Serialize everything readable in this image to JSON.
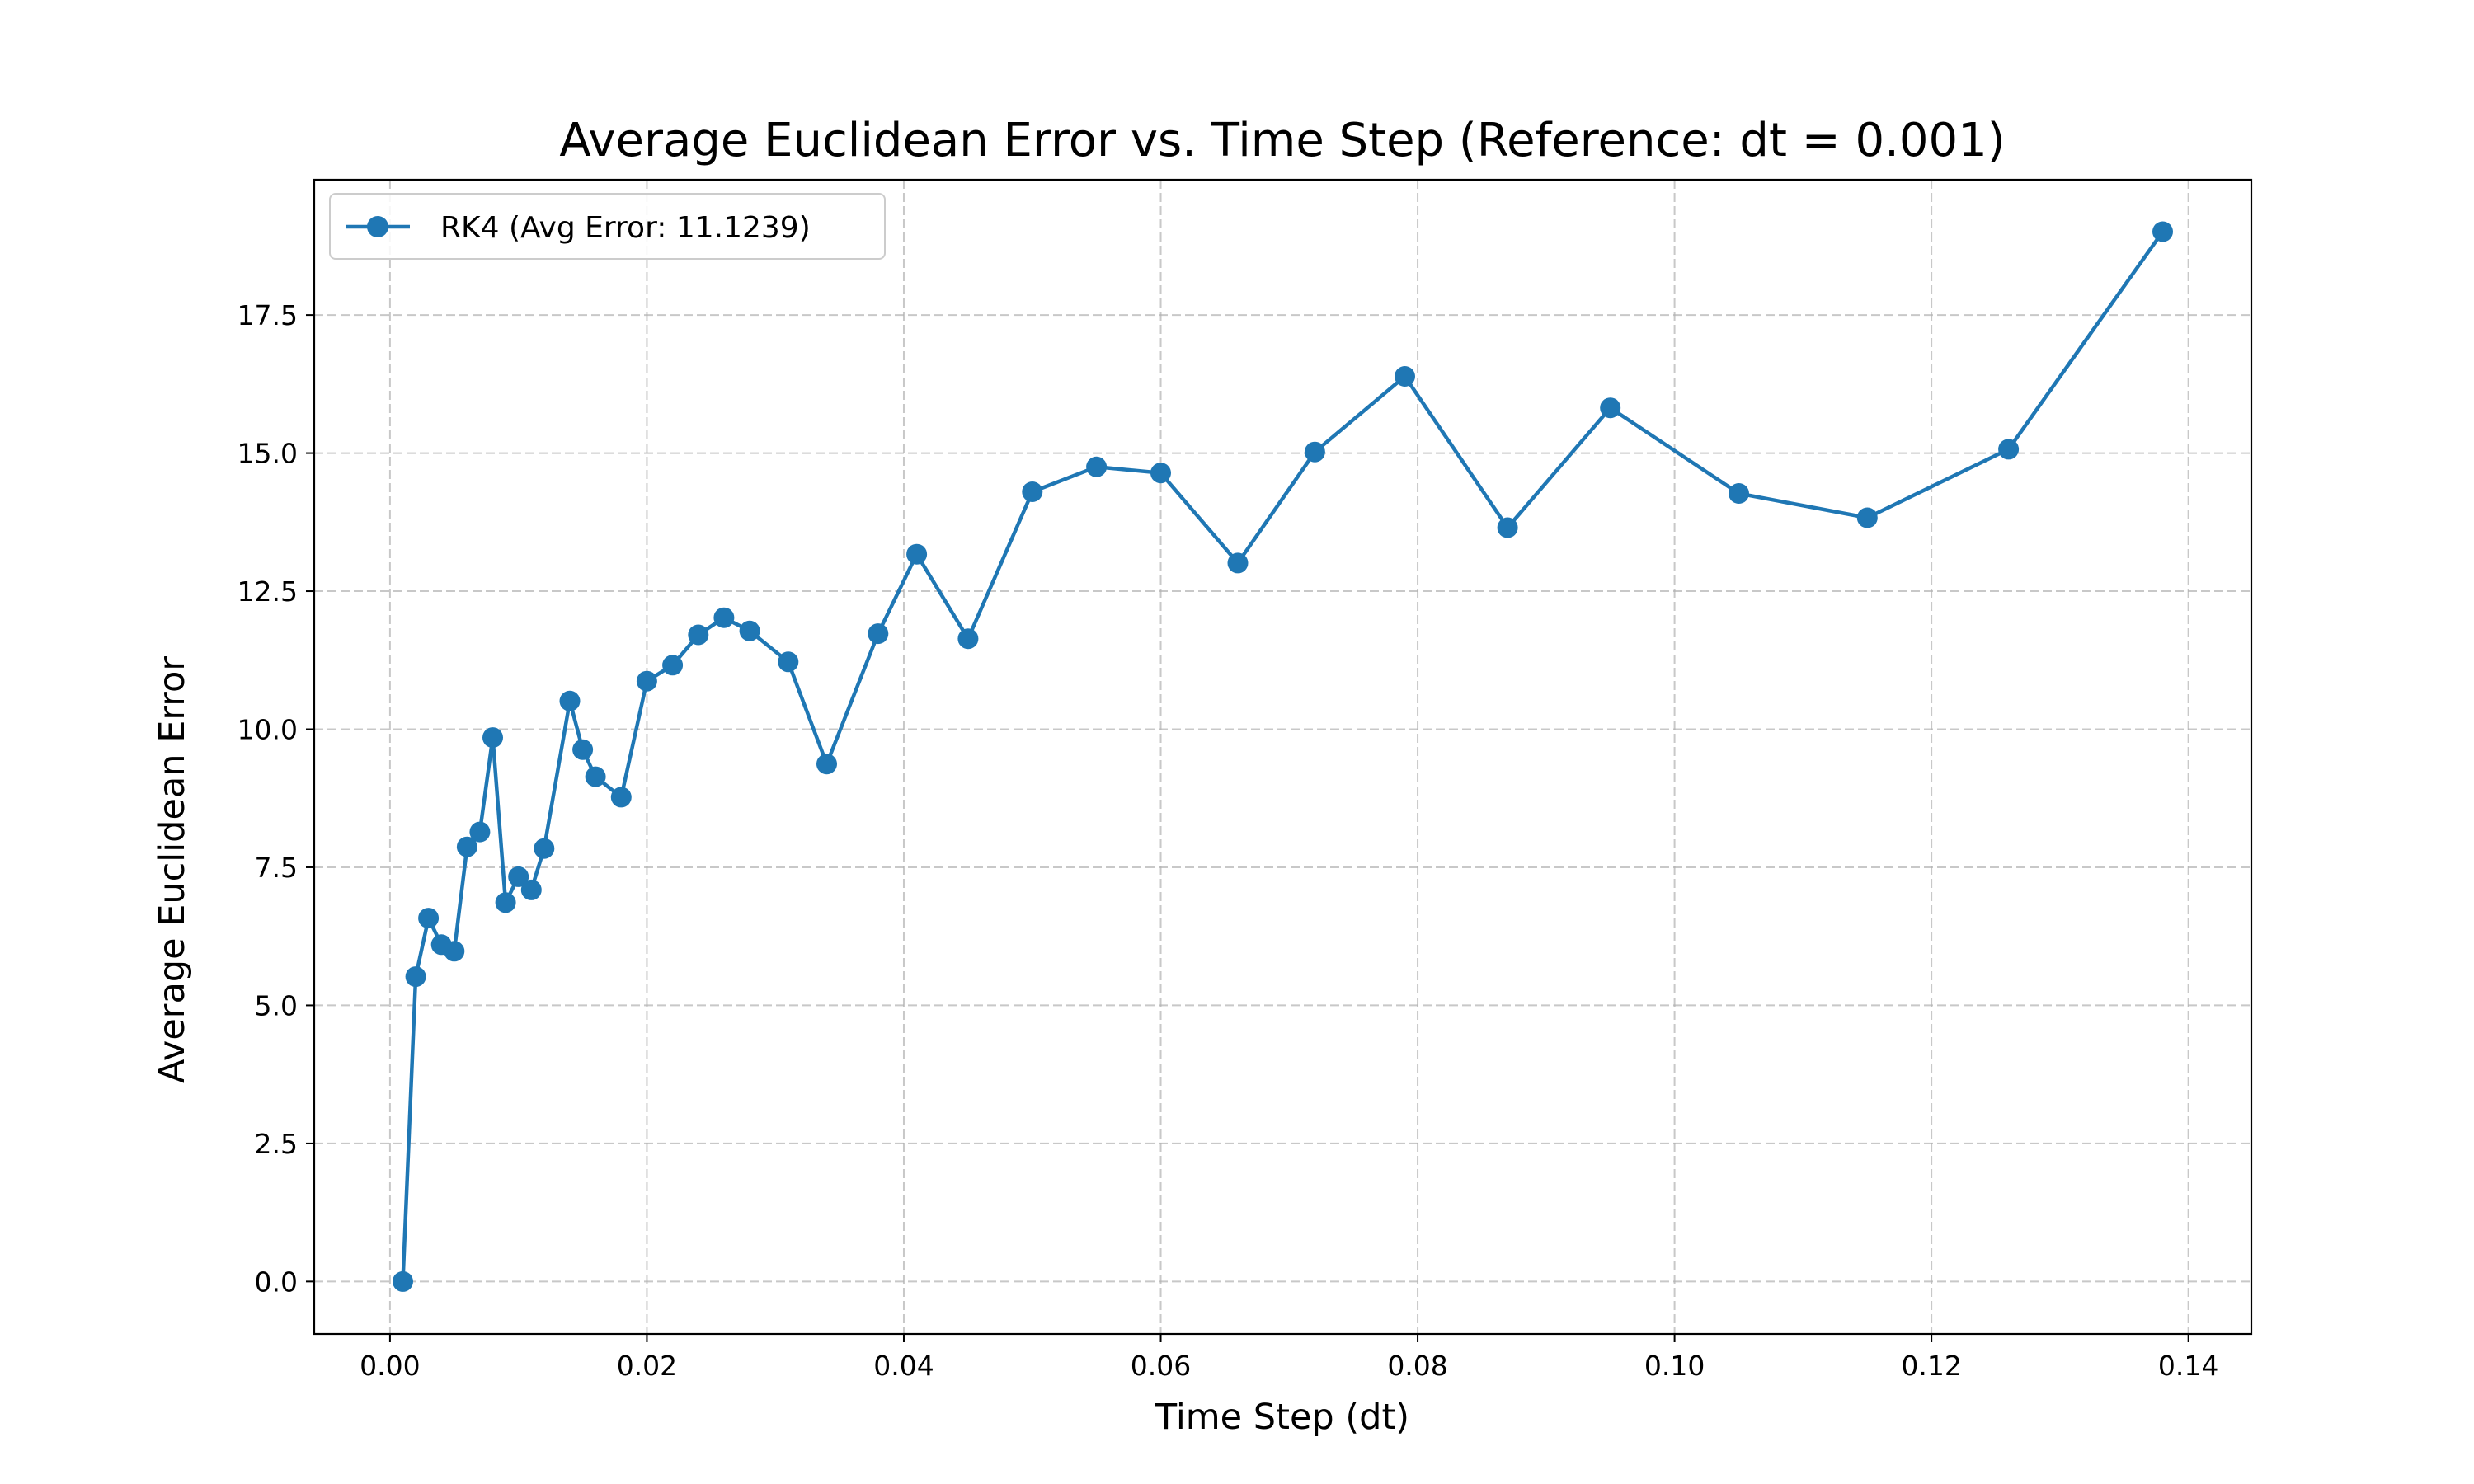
{
  "chart_data": {
    "type": "line",
    "title": "Average Euclidean Error vs. Time Step (Reference: dt = 0.001)",
    "xlabel": "Time Step (dt)",
    "ylabel": "Average Euclidean Error",
    "xlim": [
      -0.0059,
      0.1449
    ],
    "ylim": [
      -0.95,
      19.95
    ],
    "xticks": [
      0.0,
      0.02,
      0.04,
      0.06,
      0.08,
      0.1,
      0.12,
      0.14
    ],
    "xtick_labels": [
      "0.00",
      "0.02",
      "0.04",
      "0.06",
      "0.08",
      "0.10",
      "0.12",
      "0.14"
    ],
    "yticks": [
      0.0,
      2.5,
      5.0,
      7.5,
      10.0,
      12.5,
      15.0,
      17.5
    ],
    "ytick_labels": [
      "0.0",
      "2.5",
      "5.0",
      "7.5",
      "10.0",
      "12.5",
      "15.0",
      "17.5"
    ],
    "grid": true,
    "legend_position": "top-left",
    "series": [
      {
        "name": "RK4 (Avg Error: 11.1239)",
        "color": "#1f77b4",
        "marker": "circle",
        "x": [
          0.001,
          0.002,
          0.003,
          0.004,
          0.005,
          0.006,
          0.007,
          0.008,
          0.009,
          0.01,
          0.011,
          0.012,
          0.014,
          0.015,
          0.016,
          0.018,
          0.02,
          0.022,
          0.024,
          0.026,
          0.028,
          0.031,
          0.034,
          0.038,
          0.041,
          0.045,
          0.05,
          0.055,
          0.06,
          0.066,
          0.072,
          0.079,
          0.087,
          0.095,
          0.105,
          0.115,
          0.126,
          0.138
        ],
        "y": [
          0.0,
          5.52,
          6.58,
          6.1,
          5.98,
          7.87,
          8.14,
          9.85,
          6.86,
          7.33,
          7.09,
          7.84,
          10.51,
          9.63,
          9.14,
          8.77,
          10.87,
          11.16,
          11.71,
          12.02,
          11.78,
          11.22,
          9.37,
          11.73,
          13.17,
          11.64,
          14.3,
          14.75,
          14.64,
          13.01,
          15.02,
          16.39,
          13.65,
          15.82,
          14.27,
          13.83,
          15.07,
          19.01
        ]
      }
    ]
  }
}
